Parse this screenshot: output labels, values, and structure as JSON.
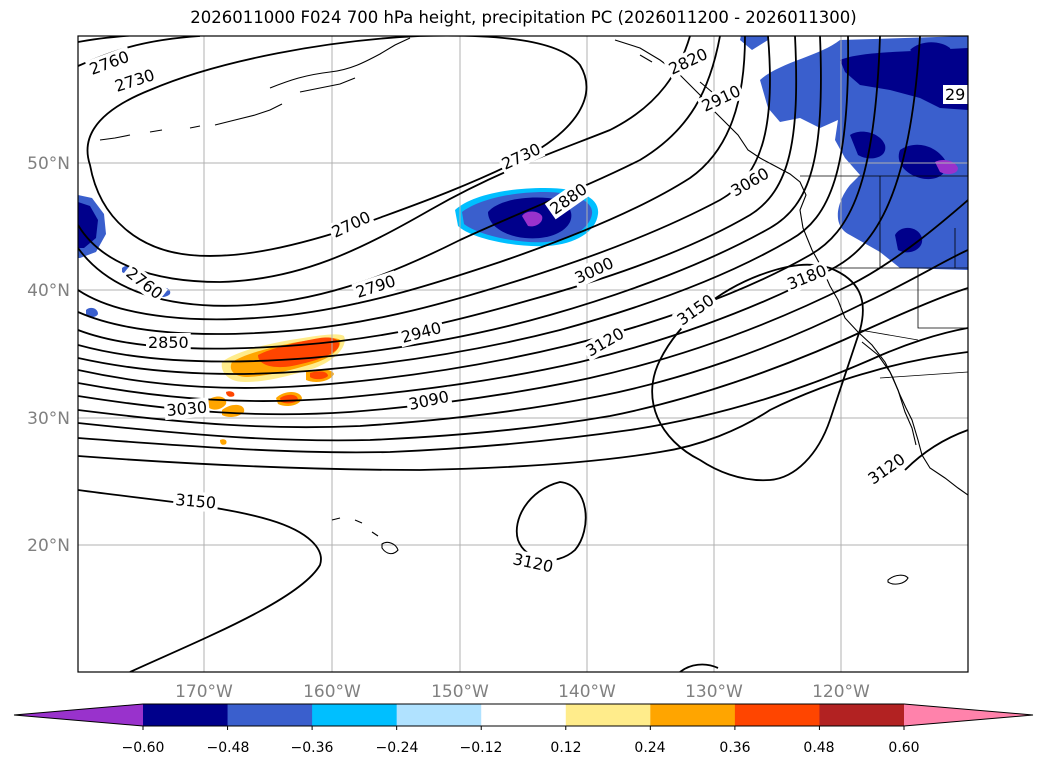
{
  "title": "2026011000 F024 700 hPa height, precipitation PC (2026011200 - 2026011300)",
  "map": {
    "lat_ticks": [
      "50°N",
      "40°N",
      "30°N",
      "20°N"
    ],
    "lon_ticks": [
      "170°W",
      "160°W",
      "150°W",
      "140°W",
      "130°W",
      "120°W"
    ],
    "contour_labels": [
      "2760",
      "2730",
      "2820",
      "2910",
      "2730",
      "2880",
      "3060",
      "2700",
      "2760",
      "2790",
      "3000",
      "3180",
      "2850",
      "2940",
      "3150",
      "3120",
      "3030",
      "3090",
      "3150",
      "3120",
      "3120",
      "29"
    ]
  },
  "colorbar": {
    "ticks": [
      "−0.60",
      "−0.48",
      "−0.36",
      "−0.24",
      "−0.12",
      "0.12",
      "0.24",
      "0.36",
      "0.48",
      "0.60"
    ],
    "colors": [
      "#9932cc",
      "#00008b",
      "#3a5fcd",
      "#00bfff",
      "#b0e2ff",
      "#ffffff",
      "#ffec8b",
      "#ffa500",
      "#ff4500",
      "#b22222",
      "#ff82ab"
    ]
  }
}
